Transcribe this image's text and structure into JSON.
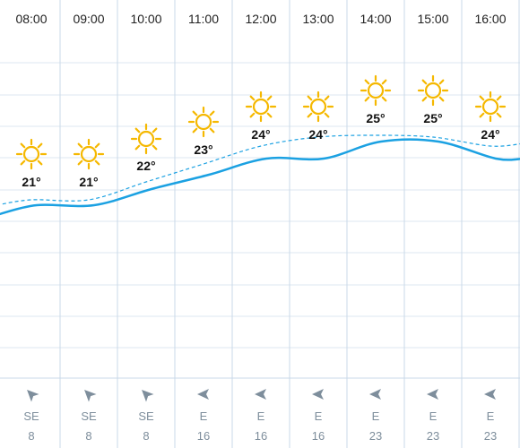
{
  "forecast": {
    "colors": {
      "grid": "#dde7f0",
      "column_divider": "#c9d9e8",
      "temp_line": "#1ba1e2",
      "feels_like_line": "#1ba1e2",
      "sun": "#f5b800",
      "wind_arrow": "#7e8e9c"
    },
    "hours": [
      {
        "time": "08:00",
        "icon": "sun-icon",
        "temp": 21,
        "temp_label": "21°",
        "feels_like": 21,
        "wind_dir": "SE",
        "wind_speed": "8"
      },
      {
        "time": "09:00",
        "icon": "sun-icon",
        "temp": 21,
        "temp_label": "21°",
        "feels_like": 21,
        "wind_dir": "SE",
        "wind_speed": "8"
      },
      {
        "time": "10:00",
        "icon": "sun-icon",
        "temp": 22,
        "temp_label": "22°",
        "feels_like": 22,
        "wind_dir": "SE",
        "wind_speed": "8"
      },
      {
        "time": "11:00",
        "icon": "sun-icon",
        "temp": 23,
        "temp_label": "23°",
        "feels_like": 23,
        "wind_dir": "E",
        "wind_speed": "16"
      },
      {
        "time": "12:00",
        "icon": "sun-icon",
        "temp": 24,
        "temp_label": "24°",
        "feels_like": 24,
        "wind_dir": "E",
        "wind_speed": "16"
      },
      {
        "time": "13:00",
        "icon": "sun-icon",
        "temp": 24,
        "temp_label": "24°",
        "feels_like": 24.5,
        "wind_dir": "E",
        "wind_speed": "16"
      },
      {
        "time": "14:00",
        "icon": "sun-icon",
        "temp": 25,
        "temp_label": "25°",
        "feels_like": 24.6,
        "wind_dir": "E",
        "wind_speed": "23"
      },
      {
        "time": "15:00",
        "icon": "sun-icon",
        "temp": 25,
        "temp_label": "25°",
        "feels_like": 24.5,
        "wind_dir": "E",
        "wind_speed": "23"
      },
      {
        "time": "16:00",
        "icon": "sun-icon",
        "temp": 24,
        "temp_label": "24°",
        "feels_like": 24,
        "wind_dir": "E",
        "wind_speed": "23"
      }
    ]
  }
}
